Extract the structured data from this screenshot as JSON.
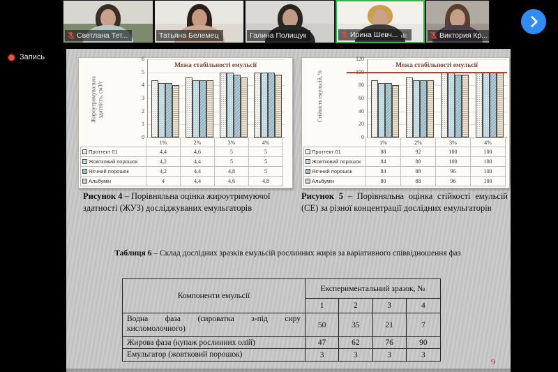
{
  "colors": {
    "recording_red": "#e0524a",
    "next_blue": "#2f8df5",
    "active_border_green": "#35b24a",
    "title_maroon": "#7d3b2d",
    "refline_red": "#c0392b",
    "page_number_red": "#a03c3c",
    "muted_mic_red": "#e04b40",
    "s0_fill": "#f5f3ee",
    "s1_fill": "#bcd8e0",
    "s2_fill": "#b3d0da",
    "s3_fill": "#eae2d2"
  },
  "meeting": {
    "recording_label": "Запись",
    "participants": [
      {
        "name": "Светлана Тет...",
        "muted": true
      },
      {
        "name": "Татьяна Белемец",
        "muted": false
      },
      {
        "name": "Галина Полищук",
        "muted": false
      },
      {
        "name": "Ирина Шевч...",
        "muted": true,
        "active_speaker": true
      },
      {
        "name": "Виктория Кр...",
        "muted": true
      }
    ]
  },
  "chart_data": [
    {
      "type": "bar",
      "title": "Межа стабільності емульсії",
      "ylabel": "Жироутримувальна\nздатність, см3/г",
      "xlabel": "",
      "categories": [
        "1%",
        "2%",
        "3%",
        "4%"
      ],
      "series": [
        {
          "name": "Проттект 01",
          "values": [
            4.4,
            4.6,
            5,
            5
          ],
          "display": [
            "4,4",
            "4,6",
            "5",
            "5"
          ]
        },
        {
          "name": "Жовтковий порошок",
          "values": [
            4.2,
            4.4,
            5,
            5
          ],
          "display": [
            "4,2",
            "4,4",
            "5",
            "5"
          ]
        },
        {
          "name": "Яєчний порошок",
          "values": [
            4.2,
            4.4,
            4.8,
            5
          ],
          "display": [
            "4,2",
            "4,4",
            "4,8",
            "5"
          ]
        },
        {
          "name": "Альбумін",
          "values": [
            4,
            4.4,
            4.6,
            4.8
          ],
          "display": [
            "4",
            "4,4",
            "4,6",
            "4,8"
          ]
        }
      ],
      "ylim": [
        0,
        6
      ],
      "ytick_step": 1,
      "grid": true,
      "legend_position": "data-table"
    },
    {
      "type": "bar",
      "title": "Межа стабільності емульсії",
      "ylabel": "Стійкість емульсій, %",
      "xlabel": "",
      "categories": [
        "1%",
        "2%",
        "3%",
        "4%"
      ],
      "series": [
        {
          "name": "Проттект 01",
          "values": [
            88,
            92,
            100,
            100
          ],
          "display": [
            "88",
            "92",
            "100",
            "100"
          ]
        },
        {
          "name": "Жовтковий порошок",
          "values": [
            84,
            88,
            100,
            100
          ],
          "display": [
            "84",
            "88",
            "100",
            "100"
          ]
        },
        {
          "name": "Яєчний порошок",
          "values": [
            84,
            88,
            96,
            100
          ],
          "display": [
            "84",
            "88",
            "96",
            "100"
          ]
        },
        {
          "name": "Альбумін",
          "values": [
            80,
            88,
            96,
            100
          ],
          "display": [
            "80",
            "88",
            "96",
            "100"
          ]
        }
      ],
      "ylim": [
        0,
        120
      ],
      "ytick_step": 20,
      "reference_line": 100,
      "grid": true,
      "legend_position": "data-table"
    }
  ],
  "slide": {
    "figures": [
      {
        "label": "Рисунок 4",
        "text": " – Порівняльна оцінка жироутримуючої здатності (ЖУЗ) досліджуваних емульгаторів"
      },
      {
        "label": "Рисунок 5",
        "text": " – Порівняльна оцінка стійкості емульсій (СЕ) за різної концентрації дослідних емульгаторів"
      }
    ],
    "table6": {
      "title_label": "Таблиця 6",
      "title_text": " – Склад дослідних зразків емульсій рослинних жирів за варіативного співвідношення фаз",
      "col_header_left": "Компоненти емульсії",
      "col_header_right": "Експериментальний зразок, №",
      "sample_numbers": [
        "1",
        "2",
        "3",
        "4"
      ],
      "rows": [
        {
          "label": "Водна фаза (сироватка з-під сиру кисломолочного)",
          "values": [
            "50",
            "35",
            "21",
            "7"
          ]
        },
        {
          "label": "Жирова фаза (купаж рослинних олій)",
          "values": [
            "47",
            "62",
            "76",
            "90"
          ]
        },
        {
          "label": "Емульгатор (жовтковий порошок)",
          "values": [
            "3",
            "3",
            "3",
            "3"
          ]
        }
      ]
    },
    "page_number": "9"
  }
}
